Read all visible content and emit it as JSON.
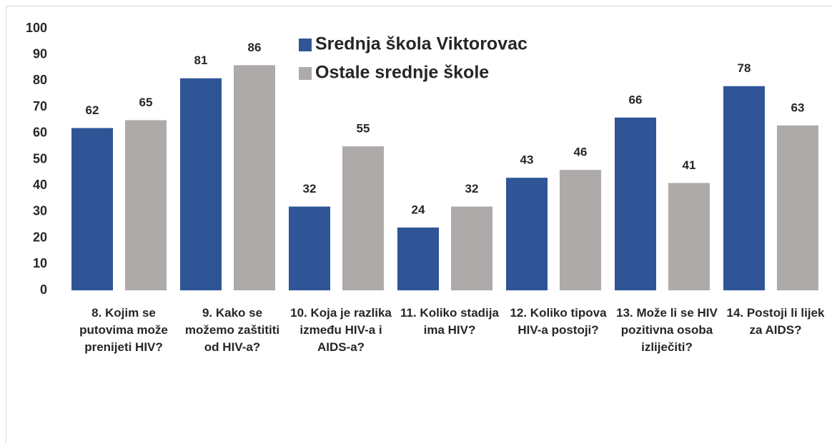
{
  "chart_data": {
    "type": "bar",
    "categories": [
      "8. Kojim se putovima može prenijeti HIV?",
      "9. Kako se možemo zaštititi od HIV-a?",
      "10. Koja je razlika između HIV-a i AIDS-a?",
      "11. Koliko stadija ima HIV?",
      "12. Koliko tipova HIV-a postoji?",
      "13. Može li se HIV pozitivna osoba izliječiti?",
      "14. Postoji li lijek za AIDS?"
    ],
    "series": [
      {
        "name": "Srednja škola Viktorovac",
        "color": "#2f5597",
        "values": [
          62,
          81,
          32,
          24,
          43,
          66,
          78
        ]
      },
      {
        "name": "Ostale srednje škole",
        "color": "#aeaaaa",
        "values": [
          65,
          86,
          55,
          32,
          46,
          41,
          63
        ]
      }
    ],
    "ylim": [
      0,
      100
    ],
    "yticks": [
      0,
      10,
      20,
      30,
      40,
      50,
      60,
      70,
      80,
      90,
      100
    ],
    "grid": false,
    "legend": "top"
  }
}
